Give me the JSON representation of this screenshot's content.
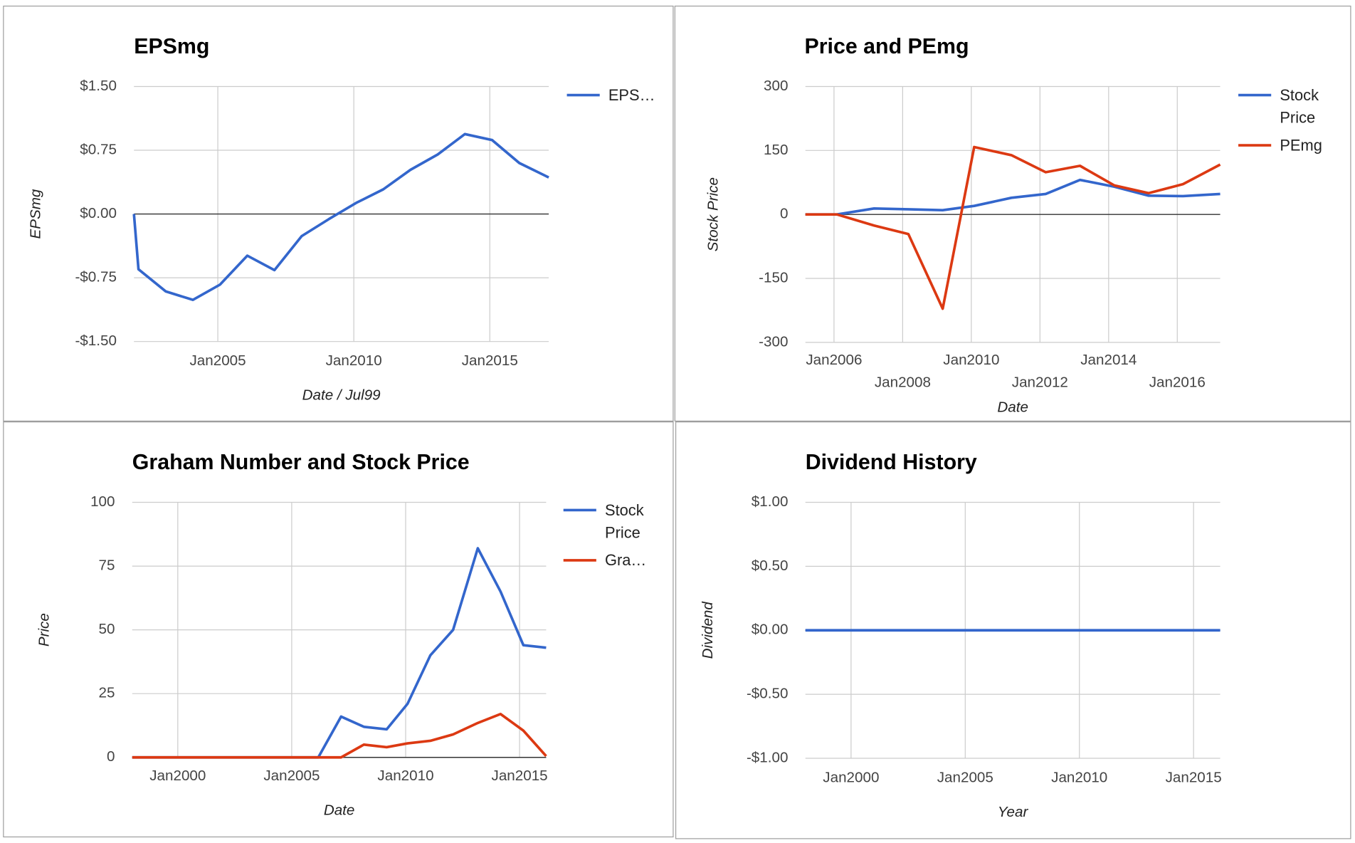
{
  "chart_data": [
    {
      "type": "line",
      "title": "EPSmg",
      "xlabel": "Date / Jul99",
      "ylabel": "EPSmg",
      "x": [
        "2001-12",
        "2002-02",
        "2003-02",
        "2004-02",
        "2005-02",
        "2006-02",
        "2007-02",
        "2008-02",
        "2009-02",
        "2010-02",
        "2011-02",
        "2012-02",
        "2013-02",
        "2014-02",
        "2015-02",
        "2016-02",
        "2017-03"
      ],
      "series": [
        {
          "name": "EPS…",
          "color": "#3366cc",
          "values": [
            0,
            -0.65,
            -0.91,
            -1.01,
            -0.83,
            -0.49,
            -0.66,
            -0.26,
            -0.06,
            0.13,
            0.29,
            0.52,
            0.7,
            0.94,
            0.87,
            0.6,
            0.43
          ]
        }
      ],
      "xlim": [
        "2001-12",
        "2017-03"
      ],
      "xticks": [
        {
          "value": "2005-01",
          "label": "Jan2005"
        },
        {
          "value": "2010-01",
          "label": "Jan2010"
        },
        {
          "value": "2015-01",
          "label": "Jan2015"
        }
      ],
      "ylim": [
        -1.5,
        1.5
      ],
      "yticks": [
        {
          "value": 1.5,
          "label": "$1.50"
        },
        {
          "value": 0.75,
          "label": "$0.75"
        },
        {
          "value": 0,
          "label": "$0.00"
        },
        {
          "value": -0.75,
          "label": "-$0.75"
        },
        {
          "value": -1.5,
          "label": "-$1.50"
        }
      ],
      "grid": true,
      "legend": "right"
    },
    {
      "type": "line",
      "title": "Price and PEmg",
      "xlabel": "Date",
      "ylabel": "Stock Price",
      "x": [
        "2005-03",
        "2006-02",
        "2007-03",
        "2008-03",
        "2009-03",
        "2010-02",
        "2011-03",
        "2012-03",
        "2013-03",
        "2014-03",
        "2015-03",
        "2016-03",
        "2017-04"
      ],
      "series": [
        {
          "name": "Stock Price",
          "color": "#3366cc",
          "values": [
            0,
            0,
            14,
            12,
            10,
            20,
            39,
            48,
            81,
            65,
            44,
            43,
            48
          ]
        },
        {
          "name": "PEmg",
          "color": "#dc3912",
          "values": [
            0,
            0,
            -26,
            -46,
            -221,
            158,
            139,
            99,
            114,
            68,
            50,
            71,
            117
          ]
        }
      ],
      "xlim": [
        "2005-03",
        "2017-04"
      ],
      "xticks": [
        {
          "value": "2006-01",
          "label": "Jan2006"
        },
        {
          "value": "2008-01",
          "label": "Jan2008"
        },
        {
          "value": "2010-01",
          "label": "Jan2010"
        },
        {
          "value": "2012-01",
          "label": "Jan2012"
        },
        {
          "value": "2014-01",
          "label": "Jan2014"
        },
        {
          "value": "2016-01",
          "label": "Jan2016"
        }
      ],
      "ylim": [
        -300,
        300
      ],
      "yticks": [
        300,
        150,
        0,
        -150,
        -300
      ],
      "grid": true,
      "legend": "right"
    },
    {
      "type": "line",
      "title": "Graham Number and Stock Price",
      "xlabel": "Date",
      "ylabel": "Price",
      "x": [
        "1998-01",
        "1999-03",
        "2000-03",
        "2001-03",
        "2002-03",
        "2003-03",
        "2004-03",
        "2005-03",
        "2006-03",
        "2007-03",
        "2008-03",
        "2009-03",
        "2010-02",
        "2011-02",
        "2012-02",
        "2013-03",
        "2014-03",
        "2015-03",
        "2016-03"
      ],
      "series": [
        {
          "name": "Stock Price",
          "color": "#3366cc",
          "values": [
            0,
            0,
            0,
            0,
            0,
            0,
            0,
            0,
            0,
            16,
            12,
            11,
            21,
            40,
            50,
            82,
            65,
            44,
            43
          ]
        },
        {
          "name": "Gra…",
          "color": "#dc3912",
          "values": [
            0,
            0,
            0,
            0,
            0,
            0,
            0,
            0,
            0,
            0,
            5,
            4,
            5.5,
            6.5,
            9,
            13.5,
            17,
            10.5,
            0.5
          ]
        }
      ],
      "xlim": [
        "1998-01",
        "2016-03"
      ],
      "xticks": [
        {
          "value": "2000-01",
          "label": "Jan2000"
        },
        {
          "value": "2005-01",
          "label": "Jan2005"
        },
        {
          "value": "2010-01",
          "label": "Jan2010"
        },
        {
          "value": "2015-01",
          "label": "Jan2015"
        }
      ],
      "ylim": [
        0,
        100
      ],
      "yticks": [
        100,
        75,
        50,
        25,
        0
      ],
      "grid": true,
      "legend": "right"
    },
    {
      "type": "line",
      "title": "Dividend History",
      "xlabel": "Year",
      "ylabel": "Dividend",
      "x": [
        "1998-01",
        "1999-03",
        "2000-03",
        "2001-03",
        "2002-03",
        "2003-03",
        "2004-03",
        "2005-03",
        "2006-03",
        "2007-03",
        "2008-03",
        "2009-03",
        "2010-02",
        "2011-02",
        "2012-02",
        "2013-03",
        "2014-03",
        "2015-03",
        "2016-03"
      ],
      "series": [
        {
          "color": "#3366cc",
          "values": [
            0,
            0,
            0,
            0,
            0,
            0,
            0,
            0,
            0,
            0,
            0,
            0,
            0,
            0,
            0,
            0,
            0,
            0,
            0
          ]
        }
      ],
      "xlim": [
        "1998-01",
        "2016-03"
      ],
      "xticks": [
        {
          "value": "2000-01",
          "label": "Jan2000"
        },
        {
          "value": "2005-01",
          "label": "Jan2005"
        },
        {
          "value": "2010-01",
          "label": "Jan2010"
        },
        {
          "value": "2015-01",
          "label": "Jan2015"
        }
      ],
      "ylim": [
        -1,
        1
      ],
      "yticks": [
        {
          "value": 1,
          "label": "$1.00"
        },
        {
          "value": 0.5,
          "label": "$0.50"
        },
        {
          "value": 0,
          "label": "$0.00"
        },
        {
          "value": -0.5,
          "label": "-$0.50"
        },
        {
          "value": -1,
          "label": "-$1.00"
        }
      ],
      "grid": true
    }
  ]
}
